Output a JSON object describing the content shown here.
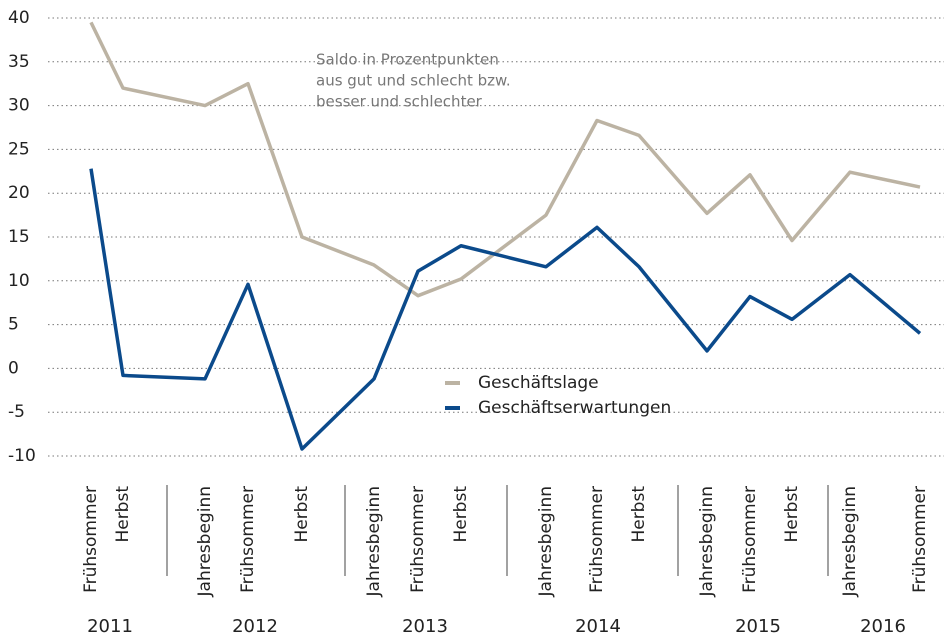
{
  "chart_data": {
    "type": "line",
    "annotation": [
      "Saldo in Prozentpunkten",
      "aus gut und schlecht bzw.",
      "besser und schlechter"
    ],
    "categories": [
      "Frühsommer",
      "Herbst",
      "Jahresbeginn",
      "Frühsommer",
      "Herbst",
      "Jahresbeginn",
      "Frühsommer",
      "Herbst",
      "Jahresbeginn",
      "Frühsommer",
      "Herbst",
      "Jahresbeginn",
      "Frühsommer",
      "Herbst",
      "Jahresbeginn",
      "Frühsommer"
    ],
    "years": [
      "2011",
      "2012",
      "2013",
      "2014",
      "2015",
      "2016"
    ],
    "series": [
      {
        "name": "Geschäftslage",
        "color": "#bcb3a3",
        "values": [
          39.5,
          32,
          30,
          32.5,
          15,
          11.8,
          8.3,
          10.2,
          17.5,
          28.3,
          26.6,
          17.7,
          22.1,
          14.6,
          22.4,
          20.7
        ]
      },
      {
        "name": "Geschäftserwartungen",
        "color": "#0b4a8b",
        "values": [
          22.8,
          -0.8,
          -1.2,
          9.6,
          -9.2,
          -1.2,
          11.1,
          14,
          11.6,
          16.1,
          11.6,
          2,
          8.2,
          5.6,
          10.7,
          4
        ]
      }
    ],
    "ylim": [
      -10,
      40
    ],
    "yticks": [
      -10,
      -5,
      0,
      5,
      10,
      15,
      20,
      25,
      30,
      35,
      40
    ],
    "grid": true
  }
}
